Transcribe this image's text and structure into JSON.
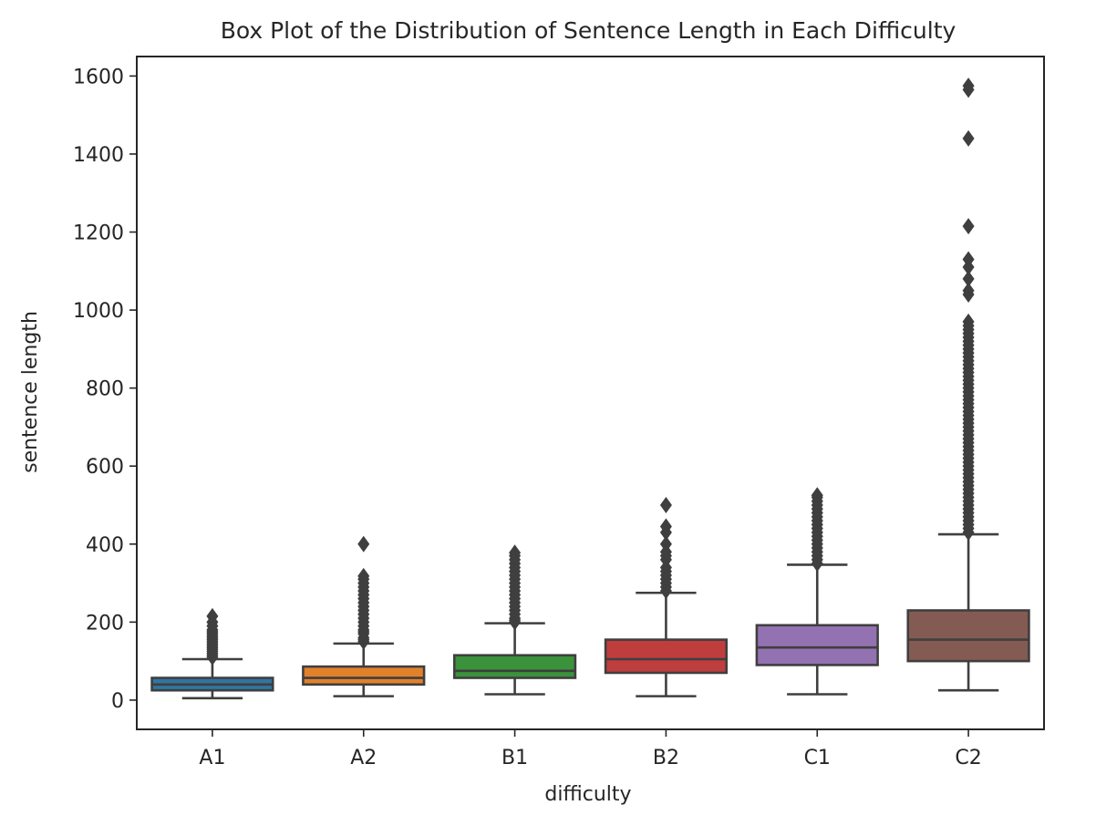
{
  "chart_data": {
    "type": "box",
    "title": "Box Plot of the Distribution of Sentence Length in Each Difficulty",
    "xlabel": "difficulty",
    "ylabel": "sentence length",
    "ylim": [
      -75,
      1650
    ],
    "yticks": [
      0,
      200,
      400,
      600,
      800,
      1000,
      1200,
      1400,
      1600
    ],
    "grid": false,
    "categories": [
      "A1",
      "A2",
      "B1",
      "B2",
      "C1",
      "C2"
    ],
    "colors": [
      "#3274a1",
      "#e1812c",
      "#3a923a",
      "#c03d3e",
      "#9372b2",
      "#845b53"
    ],
    "boxes": [
      {
        "label": "A1",
        "whisker_low": 5,
        "q1": 25,
        "median": 40,
        "q3": 57,
        "whisker_high": 105,
        "outliers": [
          110,
          115,
          120,
          125,
          130,
          135,
          140,
          145,
          150,
          155,
          160,
          165,
          170,
          175,
          180,
          190,
          200,
          215
        ]
      },
      {
        "label": "A2",
        "whisker_low": 10,
        "q1": 40,
        "median": 57,
        "q3": 86,
        "whisker_high": 145,
        "outliers": [
          150,
          155,
          160,
          170,
          175,
          180,
          190,
          200,
          210,
          220,
          230,
          240,
          250,
          260,
          270,
          280,
          290,
          300,
          310,
          318,
          400
        ]
      },
      {
        "label": "B1",
        "whisker_low": 15,
        "q1": 57,
        "median": 75,
        "q3": 115,
        "whisker_high": 197,
        "outliers": [
          200,
          205,
          210,
          220,
          230,
          240,
          250,
          260,
          270,
          280,
          290,
          300,
          310,
          320,
          330,
          340,
          350,
          360,
          370,
          378
        ]
      },
      {
        "label": "B2",
        "whisker_low": 10,
        "q1": 70,
        "median": 105,
        "q3": 155,
        "whisker_high": 275,
        "outliers": [
          280,
          290,
          300,
          310,
          320,
          330,
          340,
          360,
          370,
          380,
          400,
          430,
          445,
          500
        ]
      },
      {
        "label": "C1",
        "whisker_low": 15,
        "q1": 90,
        "median": 135,
        "q3": 192,
        "whisker_high": 347,
        "outliers": [
          350,
          360,
          370,
          380,
          390,
          400,
          410,
          420,
          430,
          440,
          450,
          460,
          470,
          480,
          490,
          500,
          510,
          520,
          525
        ]
      },
      {
        "label": "C2",
        "whisker_low": 25,
        "q1": 100,
        "median": 155,
        "q3": 230,
        "whisker_high": 425,
        "outliers": [
          430,
          440,
          450,
          460,
          470,
          480,
          490,
          500,
          510,
          520,
          530,
          540,
          550,
          560,
          570,
          580,
          590,
          600,
          610,
          620,
          630,
          640,
          650,
          660,
          670,
          680,
          690,
          700,
          710,
          720,
          730,
          740,
          750,
          760,
          770,
          780,
          790,
          800,
          810,
          820,
          830,
          840,
          850,
          860,
          870,
          880,
          890,
          900,
          910,
          920,
          930,
          940,
          950,
          960,
          970,
          1040,
          1050,
          1080,
          1110,
          1130,
          1215,
          1440,
          1565,
          1575
        ]
      }
    ]
  }
}
